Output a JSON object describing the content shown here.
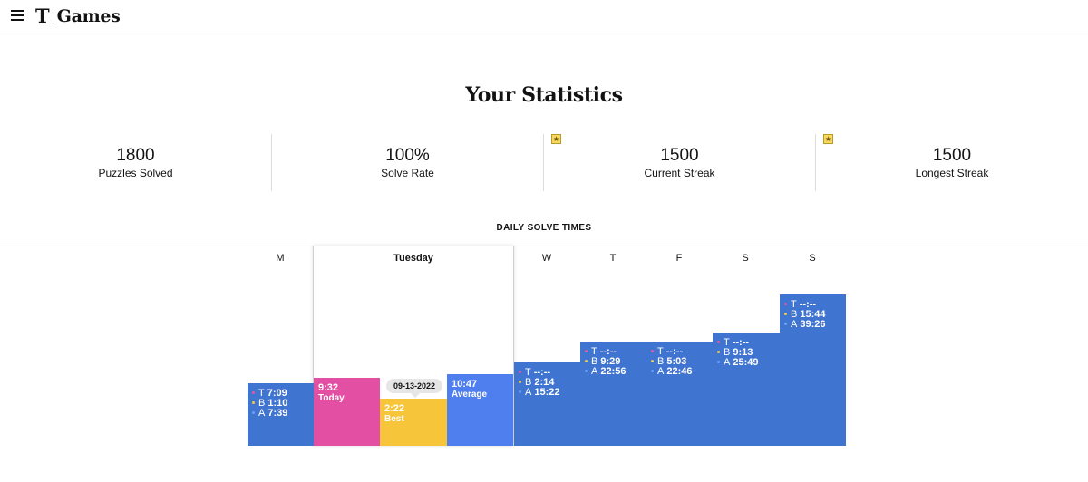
{
  "header": {
    "logo_mark": "T",
    "brand": "Games"
  },
  "title": "Your Statistics",
  "stats": [
    {
      "value": "1800",
      "label": "Puzzles Solved",
      "starred": false
    },
    {
      "value": "100%",
      "label": "Solve Rate",
      "starred": false
    },
    {
      "value": "1500",
      "label": "Current Streak",
      "starred": true
    },
    {
      "value": "1500",
      "label": "Longest Streak",
      "starred": true
    }
  ],
  "section_title": "DAILY SOLVE TIMES",
  "days": {
    "mon": {
      "label": "M",
      "t": "7:09",
      "b": "1:10",
      "a": "7:39"
    },
    "tue": {
      "label": "Tuesday",
      "today": {
        "time": "9:32",
        "label": "Today"
      },
      "best": {
        "time": "2:22",
        "label": "Best",
        "date": "09-13-2022"
      },
      "average": {
        "time": "10:47",
        "label": "Average"
      }
    },
    "wed": {
      "label": "W",
      "t": "--:--",
      "b": "2:14",
      "a": "15:22"
    },
    "thu": {
      "label": "T",
      "t": "--:--",
      "b": "9:29",
      "a": "22:56"
    },
    "fri": {
      "label": "F",
      "t": "--:--",
      "b": "5:03",
      "a": "22:46"
    },
    "sat": {
      "label": "S",
      "t": "--:--",
      "b": "9:13",
      "a": "25:49"
    },
    "sun": {
      "label": "S",
      "t": "--:--",
      "b": "15:44",
      "a": "39:26"
    }
  },
  "row_labels": {
    "t": "T",
    "b": "B",
    "a": "A"
  },
  "colors": {
    "blue": "#3f74d0",
    "today": "#e34fa2",
    "best": "#f7c53a",
    "average": "#4f7fef"
  }
}
